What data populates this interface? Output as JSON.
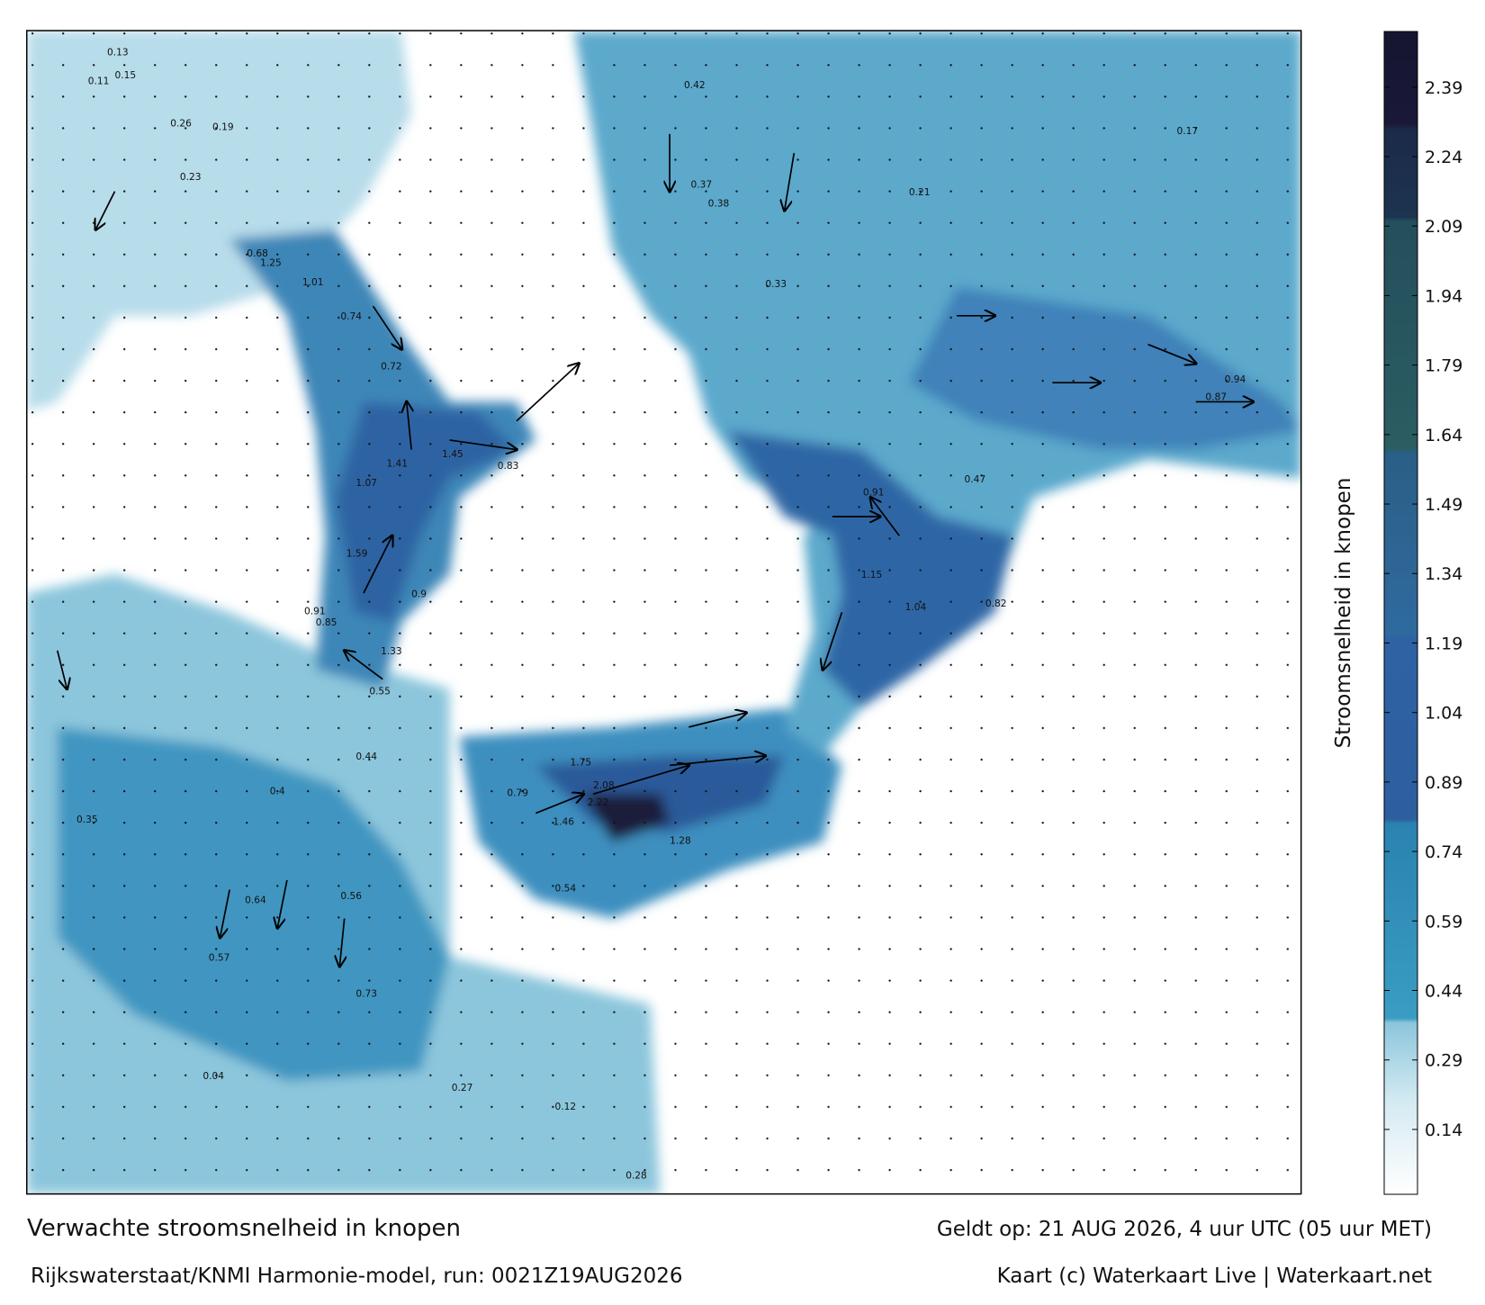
{
  "map": {
    "title": "Verwachte stroomsnelheid in knopen",
    "source": "Rijkswaterstaat/KNMI Harmonie-model, run: 0021Z19AUG2026",
    "valid": "Geldt op: 21 AUG 2026, 4 uur UTC (05 uur MET)",
    "credit": "Kaart (c) Waterkaart Live | Waterkaart.net",
    "colorbar": {
      "label": "Stroomsnelheid in knopen",
      "lim": [
        0,
        2.51
      ],
      "ticks": [
        0.14,
        0.29,
        0.44,
        0.59,
        0.74,
        0.89,
        1.04,
        1.19,
        1.34,
        1.49,
        1.64,
        1.79,
        1.94,
        2.09,
        2.24,
        2.39
      ],
      "colormap": [
        {
          "value": 0,
          "color": "#ffffff"
        },
        {
          "value": 0.2,
          "color": "#d4eaf2"
        },
        {
          "value": 0.37,
          "color": "#8cc6dc"
        },
        {
          "value": 0.38,
          "color": "#3a9dc2"
        },
        {
          "value": 0.8,
          "color": "#2a82b0"
        },
        {
          "value": 0.81,
          "color": "#2d5f9f"
        },
        {
          "value": 1.2,
          "color": "#2f62a3"
        },
        {
          "value": 1.21,
          "color": "#2f6a9f"
        },
        {
          "value": 1.6,
          "color": "#2a5f86"
        },
        {
          "value": 1.61,
          "color": "#2b5d62"
        },
        {
          "value": 2.1,
          "color": "#244f5c"
        },
        {
          "value": 2.11,
          "color": "#1c3450"
        },
        {
          "value": 2.3,
          "color": "#1b2a48"
        },
        {
          "value": 2.31,
          "color": "#1a1838"
        },
        {
          "value": 2.51,
          "color": "#151530"
        }
      ]
    },
    "speed_labels": [
      0.13,
      0.11,
      0.15,
      0.26,
      0.19,
      0.23,
      0.68,
      1.25,
      1.01,
      0.74,
      0.72,
      1.45,
      0.83,
      1.41,
      1.07,
      1.59,
      0.85,
      0.91,
      1.33,
      0.9,
      0.55,
      0.44,
      0.35,
      0.4,
      0.64,
      0.57,
      0.56,
      0.73,
      1.75,
      2.08,
      2.22,
      1.46,
      1.28,
      0.79,
      0.37,
      0.38,
      0.42,
      0.47,
      0.54,
      0.87,
      0.94,
      0.91,
      1.15,
      1.04,
      0.82,
      0.33,
      0.21,
      0.17,
      0.27,
      0.28,
      0.04,
      0.12
    ]
  }
}
